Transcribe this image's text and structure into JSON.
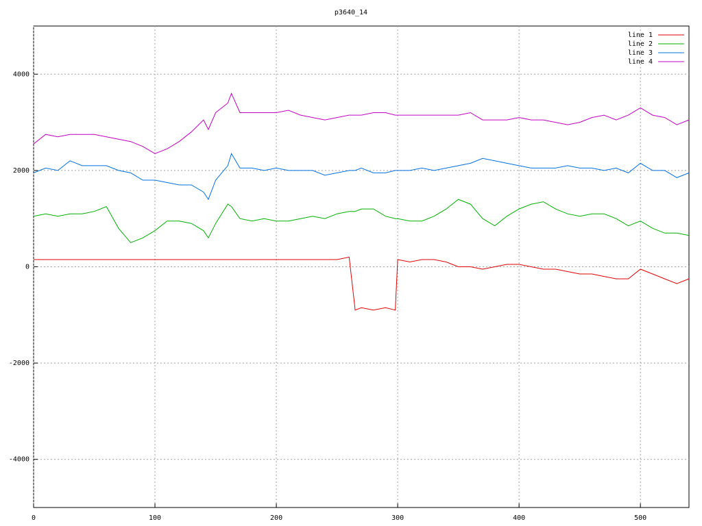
{
  "chart_data": {
    "type": "line",
    "title": "p3640_14",
    "x": [
      0,
      10,
      20,
      30,
      40,
      50,
      60,
      70,
      80,
      90,
      100,
      110,
      120,
      130,
      140,
      144,
      150,
      160,
      163,
      170,
      180,
      190,
      200,
      210,
      220,
      230,
      240,
      250,
      260,
      265,
      270,
      280,
      290,
      298,
      300,
      310,
      320,
      330,
      340,
      350,
      360,
      370,
      380,
      390,
      400,
      410,
      420,
      430,
      440,
      450,
      460,
      470,
      480,
      490,
      500,
      510,
      520,
      530,
      540
    ],
    "series": [
      {
        "name": "line 1",
        "color": "#e00000",
        "values": [
          150,
          150,
          150,
          150,
          150,
          150,
          150,
          150,
          150,
          150,
          150,
          150,
          150,
          150,
          150,
          150,
          150,
          150,
          150,
          150,
          150,
          150,
          150,
          150,
          150,
          150,
          150,
          150,
          200,
          -900,
          -850,
          -900,
          -850,
          -900,
          150,
          100,
          150,
          150,
          100,
          0,
          0,
          -50,
          0,
          50,
          50,
          0,
          -50,
          -50,
          -100,
          -150,
          -150,
          -200,
          -250,
          -250,
          -50,
          -150,
          -250,
          -350,
          -250
        ]
      },
      {
        "name": "line 2",
        "color": "#00b000",
        "values": [
          1050,
          1100,
          1050,
          1100,
          1100,
          1150,
          1250,
          800,
          500,
          600,
          750,
          950,
          950,
          900,
          750,
          600,
          900,
          1300,
          1250,
          1000,
          950,
          1000,
          950,
          950,
          1000,
          1050,
          1000,
          1100,
          1150,
          1150,
          1200,
          1200,
          1050,
          1000,
          1000,
          950,
          950,
          1050,
          1200,
          1400,
          1300,
          1000,
          850,
          1050,
          1200,
          1300,
          1350,
          1200,
          1100,
          1050,
          1100,
          1100,
          1000,
          850,
          950,
          800,
          700,
          700,
          650
        ]
      },
      {
        "name": "line 3",
        "color": "#0070e0",
        "values": [
          1950,
          2050,
          2000,
          2200,
          2100,
          2100,
          2100,
          2000,
          1950,
          1800,
          1800,
          1750,
          1700,
          1700,
          1550,
          1400,
          1800,
          2100,
          2350,
          2050,
          2050,
          2000,
          2050,
          2000,
          2000,
          2000,
          1900,
          1950,
          2000,
          2000,
          2050,
          1950,
          1950,
          2000,
          2000,
          2000,
          2050,
          2000,
          2050,
          2100,
          2150,
          2250,
          2200,
          2150,
          2100,
          2050,
          2050,
          2050,
          2100,
          2050,
          2050,
          2000,
          2050,
          1950,
          2150,
          2000,
          2000,
          1850,
          1950
        ]
      },
      {
        "name": "line 4",
        "color": "#c000c0",
        "values": [
          2550,
          2750,
          2700,
          2750,
          2750,
          2750,
          2700,
          2650,
          2600,
          2500,
          2350,
          2450,
          2600,
          2800,
          3050,
          2850,
          3200,
          3400,
          3600,
          3200,
          3200,
          3200,
          3200,
          3250,
          3150,
          3100,
          3050,
          3100,
          3150,
          3150,
          3150,
          3200,
          3200,
          3150,
          3150,
          3150,
          3150,
          3150,
          3150,
          3150,
          3200,
          3050,
          3050,
          3050,
          3100,
          3050,
          3050,
          3000,
          2950,
          3000,
          3100,
          3150,
          3050,
          3150,
          3300,
          3150,
          3100,
          2950,
          3050
        ]
      }
    ],
    "xlim": [
      0,
      540
    ],
    "ylim": [
      -5000,
      5000
    ],
    "xticks": [
      0,
      100,
      200,
      300,
      400,
      500
    ],
    "yticks": [
      -4000,
      -2000,
      0,
      2000,
      4000
    ],
    "grid": true,
    "legend": "top-right"
  }
}
